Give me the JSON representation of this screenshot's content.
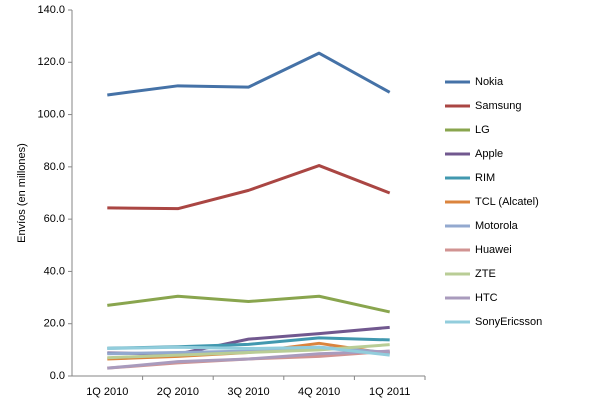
{
  "chart_data": {
    "type": "line",
    "y_label": "Envíos (en millones)",
    "categories": [
      "1Q 2010",
      "2Q 2010",
      "3Q 2010",
      "4Q 2010",
      "1Q 2011"
    ],
    "ylim": [
      0,
      140
    ],
    "yticks": [
      {
        "value": 0,
        "label": "0.0"
      },
      {
        "value": 20,
        "label": "20.0"
      },
      {
        "value": 40,
        "label": "40.0"
      },
      {
        "value": 60,
        "label": "60.0"
      },
      {
        "value": 80,
        "label": "80.0"
      },
      {
        "value": 100,
        "label": "100.0"
      },
      {
        "value": 120,
        "label": "120.0"
      },
      {
        "value": 140,
        "label": "140.0"
      }
    ],
    "grid": false,
    "legend": "right",
    "series": [
      {
        "name": "Nokia",
        "color": "#4572a7",
        "values": [
          107.5,
          111,
          110.5,
          123.5,
          108.5
        ]
      },
      {
        "name": "Samsung",
        "color": "#aa4643",
        "values": [
          64.3,
          64,
          71,
          80.5,
          70
        ]
      },
      {
        "name": "LG",
        "color": "#89a54e",
        "values": [
          27,
          30.5,
          28.5,
          30.5,
          24.5
        ]
      },
      {
        "name": "Apple",
        "color": "#71588f",
        "values": [
          8.8,
          8.4,
          14.1,
          16.2,
          18.6
        ]
      },
      {
        "name": "RIM",
        "color": "#4198af",
        "values": [
          10.6,
          11.2,
          12.1,
          14.6,
          13.8
        ]
      },
      {
        "name": "TCL (Alcatel)",
        "color": "#db843d",
        "values": [
          6.5,
          7.5,
          9,
          12.5,
          8.5
        ]
      },
      {
        "name": "Motorola",
        "color": "#93a9cf",
        "values": [
          8.5,
          9,
          9.5,
          11,
          9
        ]
      },
      {
        "name": "Huawei",
        "color": "#d19392",
        "values": [
          3,
          5,
          6.5,
          7.5,
          9.5
        ]
      },
      {
        "name": "ZTE",
        "color": "#b9cd96",
        "values": [
          7,
          8,
          9,
          10,
          12
        ]
      },
      {
        "name": "HTC",
        "color": "#a99bbd",
        "values": [
          3,
          5.5,
          6.5,
          8.5,
          9.5
        ]
      },
      {
        "name": "SonyEricsson",
        "color": "#92cddc",
        "values": [
          10.5,
          11,
          10.5,
          11,
          8
        ]
      }
    ]
  }
}
